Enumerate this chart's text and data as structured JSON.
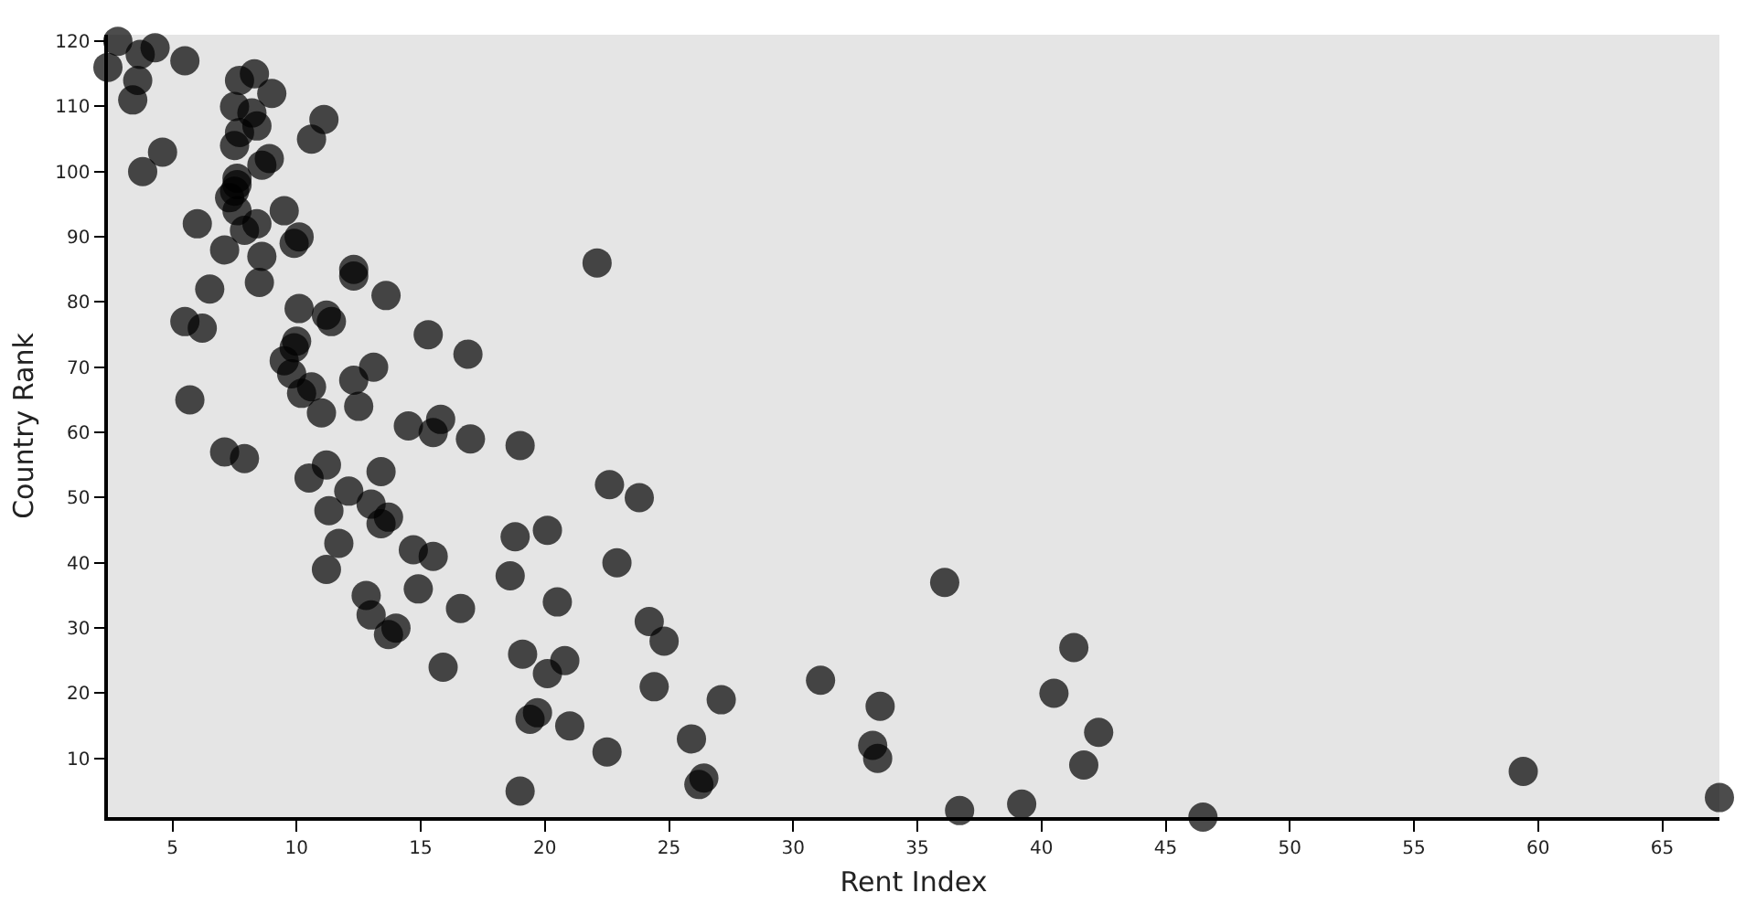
{
  "chart_data": {
    "type": "scatter",
    "xlabel": "Rent Index",
    "ylabel": "Country Rank",
    "marker": "circle",
    "grid": false,
    "xlim": [
      2.4,
      67.3
    ],
    "ylim": [
      1,
      121
    ],
    "xticks": [
      5,
      10,
      15,
      20,
      25,
      30,
      35,
      40,
      45,
      50,
      55,
      60,
      65
    ],
    "yticks": [
      10,
      20,
      30,
      40,
      50,
      60,
      70,
      80,
      90,
      100,
      110,
      120
    ],
    "series": [
      {
        "color": "#000000",
        "x": [
          2.4,
          2.8,
          3.6,
          3.4,
          3.7,
          4.3,
          5.5,
          3.8,
          4.6,
          6.0,
          6.5,
          5.5,
          6.2,
          5.7,
          7.1,
          7.9,
          7.1,
          7.7,
          8.3,
          9.0,
          7.5,
          8.2,
          8.4,
          7.7,
          7.5,
          8.9,
          8.6,
          7.6,
          7.6,
          7.5,
          7.3,
          7.6,
          9.5,
          7.9,
          8.4,
          10.1,
          9.9,
          8.6,
          8.5,
          10.1,
          11.1,
          10.6,
          12.3,
          12.3,
          13.6,
          11.2,
          11.4,
          15.3,
          16.9,
          10.0,
          9.9,
          9.5,
          9.8,
          10.6,
          10.2,
          12.3,
          13.1,
          12.5,
          11.0,
          14.5,
          15.8,
          15.5,
          17.0,
          19.0,
          10.5,
          11.2,
          13.4,
          12.1,
          13.0,
          11.3,
          13.4,
          13.7,
          11.7,
          14.7,
          15.5,
          11.2,
          14.9,
          12.8,
          16.6,
          13.0,
          14.0,
          13.7,
          15.9,
          22.6,
          23.8,
          18.8,
          20.1,
          22.9,
          18.6,
          20.5,
          19.1,
          20.8,
          20.1,
          19.7,
          19.4,
          21.0,
          22.5,
          19.0,
          22.1,
          24.2,
          24.8,
          24.4,
          27.1,
          31.1,
          33.5,
          36.1,
          41.3,
          40.5,
          42.3,
          41.7,
          33.2,
          33.4,
          25.9,
          26.4,
          26.2,
          36.7,
          39.2,
          46.5,
          59.4,
          67.3
        ],
        "values": [
          116,
          120,
          114,
          111,
          118,
          119,
          117,
          100,
          103,
          92,
          82,
          77,
          76,
          65,
          57,
          56,
          88,
          114,
          115,
          112,
          110,
          109,
          107,
          106,
          104,
          102,
          101,
          99,
          98,
          97,
          96,
          94,
          94,
          91,
          92,
          90,
          89,
          87,
          83,
          79,
          108,
          105,
          85,
          84,
          81,
          78,
          77,
          75,
          72,
          74,
          73,
          71,
          69,
          67,
          66,
          68,
          70,
          64,
          63,
          61,
          62,
          60,
          59,
          58,
          53,
          55,
          54,
          51,
          49,
          48,
          46,
          47,
          43,
          42,
          41,
          39,
          36,
          35,
          33,
          32,
          30,
          29,
          24,
          52,
          50,
          44,
          45,
          40,
          38,
          34,
          26,
          25,
          23,
          17,
          16,
          15,
          11,
          5,
          86,
          31,
          28,
          21,
          19,
          22,
          18,
          37,
          27,
          20,
          14,
          9,
          12,
          10,
          13,
          7,
          6,
          2,
          3,
          1,
          8,
          4
        ]
      }
    ]
  }
}
